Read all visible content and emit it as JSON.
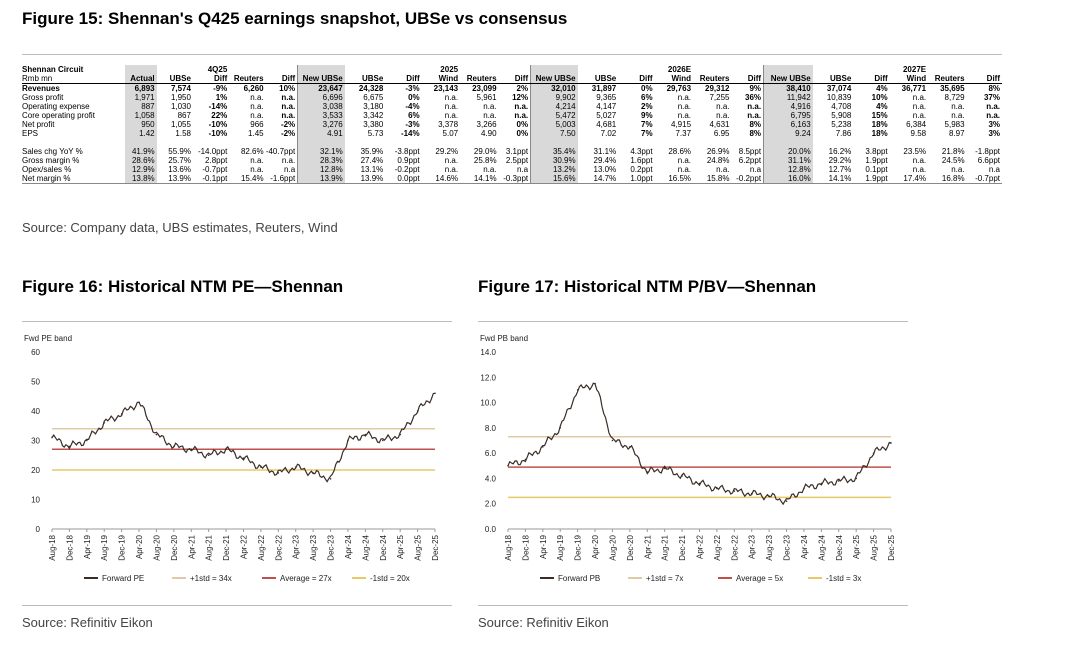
{
  "fig15": {
    "title": "Figure 15: Shennan's Q425 earnings snapshot, UBSe vs consensus",
    "source": "Source: Company data, UBS estimates, Reuters, Wind",
    "company": "Shennan Circuit",
    "unit": "Rmb mn",
    "periods": [
      "4Q25",
      "2025",
      "2026E",
      "2027E"
    ],
    "columns": [
      "Actual",
      "UBSe",
      "Diff",
      "Reuters",
      "Diff",
      "New UBSe",
      "UBSe",
      "Diff",
      "Wind",
      "Reuters",
      "Diff",
      "New UBSe",
      "UBSe",
      "Diff",
      "Wind",
      "Reuters",
      "Diff",
      "New UBSe",
      "UBSe",
      "Diff",
      "Wind",
      "Reuters",
      "Diff"
    ],
    "rows": [
      {
        "label": "Revenues",
        "cells": [
          "6,893",
          "7,574",
          "-9%",
          "6,260",
          "10%",
          "23,647",
          "24,328",
          "-3%",
          "23,143",
          "23,099",
          "2%",
          "32,010",
          "31,897",
          "0%",
          "29,763",
          "29,312",
          "9%",
          "38,410",
          "37,074",
          "4%",
          "36,771",
          "35,695",
          "8%"
        ]
      },
      {
        "label": "Gross profit",
        "cells": [
          "1,971",
          "1,950",
          "1%",
          "n.a.",
          "n.a.",
          "6,696",
          "6,675",
          "0%",
          "n.a.",
          "5,961",
          "12%",
          "9,902",
          "9,365",
          "6%",
          "n.a.",
          "7,255",
          "36%",
          "11,942",
          "10,839",
          "10%",
          "n.a.",
          "8,729",
          "37%"
        ]
      },
      {
        "label": "Operating expense",
        "cells": [
          "887",
          "1,030",
          "-14%",
          "n.a.",
          "n.a.",
          "3,038",
          "3,180",
          "-4%",
          "n.a.",
          "n.a.",
          "n.a.",
          "4,214",
          "4,147",
          "2%",
          "n.a.",
          "n.a.",
          "n.a.",
          "4,916",
          "4,708",
          "4%",
          "n.a.",
          "n.a.",
          "n.a."
        ]
      },
      {
        "label": "Core operating profit",
        "cells": [
          "1,058",
          "867",
          "22%",
          "n.a.",
          "n.a.",
          "3,533",
          "3,342",
          "6%",
          "n.a.",
          "n.a.",
          "n.a.",
          "5,472",
          "5,027",
          "9%",
          "n.a.",
          "n.a.",
          "n.a.",
          "6,795",
          "5,908",
          "15%",
          "n.a.",
          "n.a.",
          "n.a."
        ]
      },
      {
        "label": "Net profit",
        "cells": [
          "950",
          "1,055",
          "-10%",
          "966",
          "-2%",
          "3,276",
          "3,380",
          "-3%",
          "3,378",
          "3,266",
          "0%",
          "5,003",
          "4,681",
          "7%",
          "4,915",
          "4,631",
          "8%",
          "6,163",
          "5,238",
          "18%",
          "6,384",
          "5,983",
          "3%"
        ]
      },
      {
        "label": "EPS",
        "cells": [
          "1.42",
          "1.58",
          "-10%",
          "1.45",
          "-2%",
          "4.91",
          "5.73",
          "-14%",
          "5.07",
          "4.90",
          "0%",
          "7.50",
          "7.02",
          "7%",
          "7.37",
          "6.95",
          "8%",
          "9.24",
          "7.86",
          "18%",
          "9.58",
          "8.97",
          "3%"
        ]
      },
      {
        "label": "Sales chg YoY %",
        "cells": [
          "41.9%",
          "55.9%",
          "-14.0ppt",
          "82.6%",
          "-40.7ppt",
          "32.1%",
          "35.9%",
          "-3.8ppt",
          "29.2%",
          "29.0%",
          "3.1ppt",
          "35.4%",
          "31.1%",
          "4.3ppt",
          "28.6%",
          "26.9%",
          "8.5ppt",
          "20.0%",
          "16.2%",
          "3.8ppt",
          "23.5%",
          "21.8%",
          "-1.8ppt"
        ]
      },
      {
        "label": "Gross margin %",
        "cells": [
          "28.6%",
          "25.7%",
          "2.8ppt",
          "n.a.",
          "n.a.",
          "28.3%",
          "27.4%",
          "0.9ppt",
          "n.a.",
          "25.8%",
          "2.5ppt",
          "30.9%",
          "29.4%",
          "1.6ppt",
          "n.a.",
          "24.8%",
          "6.2ppt",
          "31.1%",
          "29.2%",
          "1.9ppt",
          "n.a.",
          "24.5%",
          "6.6ppt"
        ]
      },
      {
        "label": "Opex/sales %",
        "cells": [
          "12.9%",
          "13.6%",
          "-0.7ppt",
          "n.a.",
          "n.a",
          "12.8%",
          "13.1%",
          "-0.2ppt",
          "n.a.",
          "n.a.",
          "n.a",
          "13.2%",
          "13.0%",
          "0.2ppt",
          "n.a.",
          "n.a.",
          "n.a",
          "12.8%",
          "12.7%",
          "0.1ppt",
          "n.a.",
          "n.a.",
          "n.a"
        ]
      },
      {
        "label": "Net margin %",
        "cells": [
          "13.8%",
          "13.9%",
          "-0.1ppt",
          "15.4%",
          "-1.6ppt",
          "13.9%",
          "13.9%",
          "0.0ppt",
          "14.6%",
          "14.1%",
          "-0.3ppt",
          "15.6%",
          "14.7%",
          "1.0ppt",
          "16.5%",
          "15.8%",
          "-0.2ppt",
          "16.0%",
          "14.1%",
          "1.9ppt",
          "17.4%",
          "16.8%",
          "-0.7ppt"
        ]
      }
    ]
  },
  "fig16": {
    "title": "Figure 16: Historical NTM PE—Shennan",
    "source": "Source: Refinitiv Eikon"
  },
  "fig17": {
    "title": "Figure 17: Historical NTM P/BV—Shennan",
    "source": "Source: Refinitiv Eikon"
  },
  "colors": {
    "line": "#3b2d25",
    "plus": "#e0c9a6",
    "avg": "#c0504d",
    "minus": "#e8c96a",
    "shade": "#d9d9d9"
  },
  "chart_data": [
    {
      "type": "line",
      "title": "Figure 16: Historical NTM PE—Shennan",
      "ylabel": "Fwd PE band",
      "ylim": [
        0,
        60
      ],
      "yticks": [
        0,
        10,
        20,
        30,
        40,
        50,
        60
      ],
      "categories": [
        "Aug-18",
        "Dec-18",
        "Apr-19",
        "Aug-19",
        "Dec-19",
        "Apr-20",
        "Aug-20",
        "Dec-20",
        "Apr-21",
        "Aug-21",
        "Dec-21",
        "Apr-22",
        "Aug-22",
        "Dec-22",
        "Apr-23",
        "Aug-23",
        "Dec-23",
        "Apr-24",
        "Aug-24",
        "Dec-24",
        "Apr-25",
        "Aug-25",
        "Dec-25"
      ],
      "series": [
        {
          "name": "Forward PE",
          "values": [
            31,
            28,
            30,
            36,
            39,
            43,
            32,
            28,
            27,
            25,
            27,
            24,
            21,
            19,
            21,
            19,
            17,
            30,
            32,
            30,
            32,
            40,
            46
          ]
        },
        {
          "name": "+1std = 34x",
          "values": [
            34,
            34,
            34,
            34,
            34,
            34,
            34,
            34,
            34,
            34,
            34,
            34,
            34,
            34,
            34,
            34,
            34,
            34,
            34,
            34,
            34,
            34,
            34
          ]
        },
        {
          "name": "Average = 27x",
          "values": [
            27,
            27,
            27,
            27,
            27,
            27,
            27,
            27,
            27,
            27,
            27,
            27,
            27,
            27,
            27,
            27,
            27,
            27,
            27,
            27,
            27,
            27,
            27
          ]
        },
        {
          "name": "-1std = 20x",
          "values": [
            20,
            20,
            20,
            20,
            20,
            20,
            20,
            20,
            20,
            20,
            20,
            20,
            20,
            20,
            20,
            20,
            20,
            20,
            20,
            20,
            20,
            20,
            20
          ]
        }
      ]
    },
    {
      "type": "line",
      "title": "Figure 17: Historical NTM P/BV—Shennan",
      "ylabel": "Fwd PB band",
      "ylim": [
        0,
        14
      ],
      "yticks": [
        "0.0",
        "2.0",
        "4.0",
        "6.0",
        "8.0",
        "10.0",
        "12.0",
        "14.0"
      ],
      "categories": [
        "Aug-18",
        "Dec-18",
        "Apr-19",
        "Aug-19",
        "Dec-19",
        "Apr-20",
        "Aug-20",
        "Dec-20",
        "Apr-21",
        "Aug-21",
        "Dec-21",
        "Apr-22",
        "Aug-22",
        "Dec-22",
        "Apr-23",
        "Aug-23",
        "Dec-23",
        "Apr-24",
        "Aug-24",
        "Dec-24",
        "Apr-25",
        "Aug-25",
        "Dec-25"
      ],
      "series": [
        {
          "name": "Forward PB",
          "values": [
            5.0,
            5.5,
            6.5,
            8.0,
            11.0,
            11.5,
            7.0,
            6.5,
            4.5,
            4.8,
            4.2,
            3.6,
            3.2,
            3.0,
            2.8,
            2.6,
            2.2,
            3.2,
            3.6,
            3.8,
            4.0,
            6.0,
            6.8
          ]
        },
        {
          "name": "+1std = 7x",
          "values": [
            7.3,
            7.3,
            7.3,
            7.3,
            7.3,
            7.3,
            7.3,
            7.3,
            7.3,
            7.3,
            7.3,
            7.3,
            7.3,
            7.3,
            7.3,
            7.3,
            7.3,
            7.3,
            7.3,
            7.3,
            7.3,
            7.3,
            7.3
          ]
        },
        {
          "name": "Average = 5x",
          "values": [
            4.9,
            4.9,
            4.9,
            4.9,
            4.9,
            4.9,
            4.9,
            4.9,
            4.9,
            4.9,
            4.9,
            4.9,
            4.9,
            4.9,
            4.9,
            4.9,
            4.9,
            4.9,
            4.9,
            4.9,
            4.9,
            4.9,
            4.9
          ]
        },
        {
          "name": "-1std = 3x",
          "values": [
            2.5,
            2.5,
            2.5,
            2.5,
            2.5,
            2.5,
            2.5,
            2.5,
            2.5,
            2.5,
            2.5,
            2.5,
            2.5,
            2.5,
            2.5,
            2.5,
            2.5,
            2.5,
            2.5,
            2.5,
            2.5,
            2.5,
            2.5
          ]
        }
      ]
    }
  ]
}
